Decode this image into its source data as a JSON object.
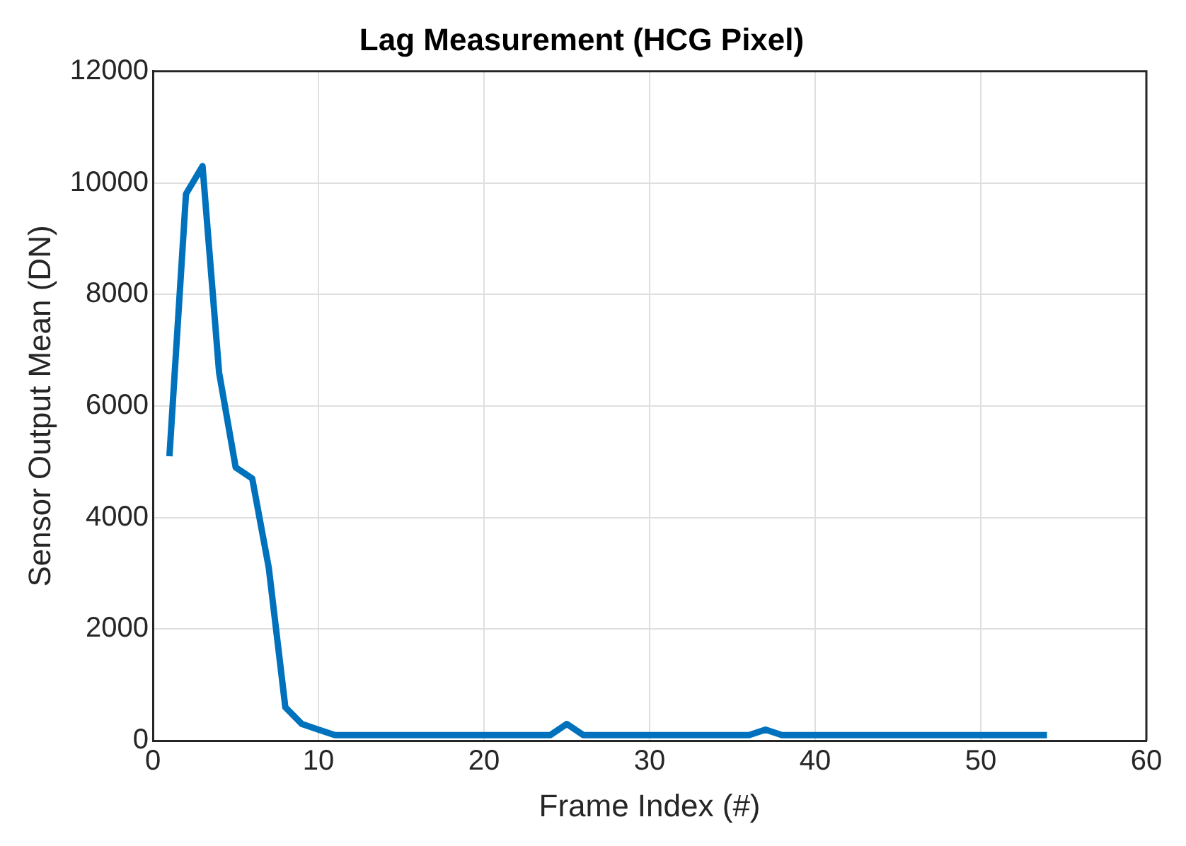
{
  "chart_data": {
    "type": "line",
    "title": "Lag Measurement (HCG Pixel)",
    "xlabel": "Frame Index (#)",
    "ylabel": "Sensor Output Mean (DN)",
    "x": [
      1,
      2,
      3,
      4,
      5,
      6,
      7,
      8,
      9,
      10,
      11,
      12,
      13,
      14,
      15,
      16,
      17,
      18,
      19,
      20,
      21,
      22,
      23,
      24,
      25,
      26,
      27,
      28,
      29,
      30,
      31,
      32,
      33,
      34,
      35,
      36,
      37,
      38,
      39,
      40,
      41,
      42,
      43,
      44,
      45,
      46,
      47,
      48,
      49,
      50,
      51,
      52,
      53,
      54
    ],
    "series": [
      {
        "color": "#0072bd",
        "values": [
          5100,
          9800,
          10300,
          6600,
          4900,
          4700,
          3100,
          600,
          300,
          200,
          100,
          100,
          100,
          100,
          100,
          100,
          100,
          100,
          100,
          100,
          100,
          100,
          100,
          100,
          300,
          100,
          100,
          100,
          100,
          100,
          100,
          100,
          100,
          100,
          100,
          100,
          200,
          100,
          100,
          100,
          100,
          100,
          100,
          100,
          100,
          100,
          100,
          100,
          100,
          100,
          100,
          100,
          100,
          100
        ]
      }
    ],
    "xlim": [
      0,
      60
    ],
    "xticks": [
      0,
      10,
      20,
      30,
      40,
      50,
      60
    ],
    "ylim": [
      0,
      12000
    ],
    "yticks": [
      0,
      2000,
      4000,
      6000,
      8000,
      10000,
      12000
    ],
    "grid": true,
    "legend": false,
    "marker": "none",
    "line_style": "solid"
  }
}
